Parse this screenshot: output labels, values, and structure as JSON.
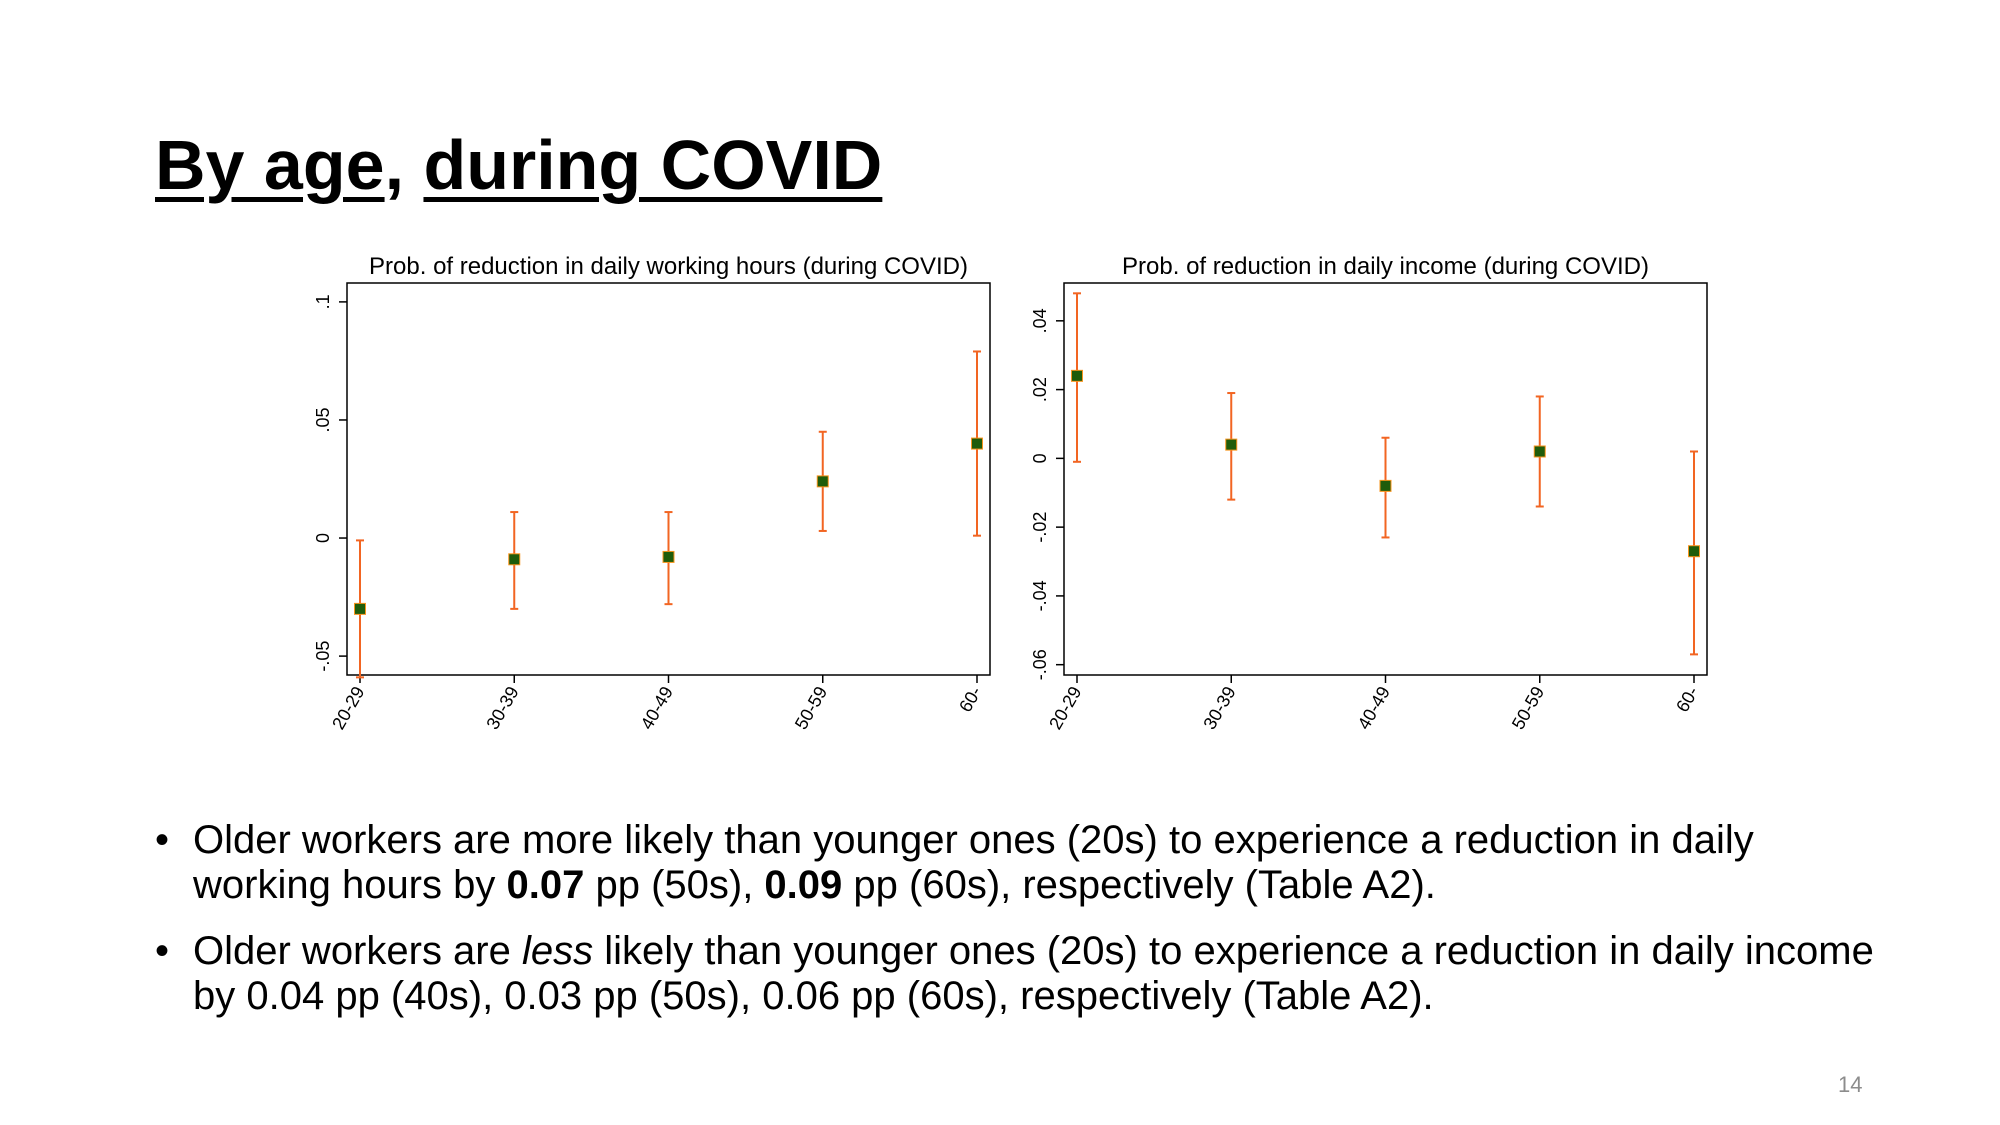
{
  "slide": {
    "title_part1": "By age",
    "title_sep": ", ",
    "title_part2": "during COVID",
    "page_number": "14",
    "bullets": [
      {
        "t1": "Older workers are more likely than younger ones (20s) to experience a reduction in daily working hours by ",
        "b1": "0.07",
        "t2": " pp (50s), ",
        "b2": "0.09",
        "t3": " pp (60s), respectively (Table A2)."
      },
      {
        "t1": "Older workers are ",
        "i1": "less",
        "t2": " likely than younger ones (20s) to experience a reduction in daily income by 0.04 pp (40s), 0.03 pp (50s), 0.06 pp (60s), respectively (Table A2)."
      }
    ]
  },
  "colors": {
    "point": "#1f5c0b",
    "errorbar": "#f26522",
    "axis": "#000000"
  },
  "chart_data": [
    {
      "type": "scatter",
      "title": "Prob. of reduction in daily working hours (during COVID)",
      "categories": [
        "20-29",
        "30-39",
        "40-49",
        "50-59",
        "60-"
      ],
      "values": [
        -0.03,
        -0.009,
        -0.008,
        0.024,
        0.04
      ],
      "ci_low": [
        -0.059,
        -0.03,
        -0.028,
        0.003,
        0.001
      ],
      "ci_high": [
        -0.001,
        0.011,
        0.011,
        0.045,
        0.079
      ],
      "ylim": [
        -0.058,
        0.108
      ],
      "yticks": [
        -0.05,
        0,
        0.05,
        0.1
      ],
      "ytick_labels": [
        "-.05",
        "0",
        ".05",
        ".1"
      ],
      "grid": false,
      "error_bars": true
    },
    {
      "type": "scatter",
      "title": "Prob. of reduction in daily income (during COVID)",
      "categories": [
        "20-29",
        "30-39",
        "40-49",
        "50-59",
        "60-"
      ],
      "values": [
        0.024,
        0.004,
        -0.008,
        0.002,
        -0.027
      ],
      "ci_low": [
        -0.001,
        -0.012,
        -0.023,
        -0.014,
        -0.057
      ],
      "ci_high": [
        0.048,
        0.019,
        0.006,
        0.018,
        0.002
      ],
      "ylim": [
        -0.063,
        0.051
      ],
      "yticks": [
        -0.06,
        -0.04,
        -0.02,
        0,
        0.02,
        0.04
      ],
      "ytick_labels": [
        "-.06",
        "-.04",
        "-.02",
        "0",
        ".02",
        ".04"
      ],
      "grid": false,
      "error_bars": true
    }
  ]
}
